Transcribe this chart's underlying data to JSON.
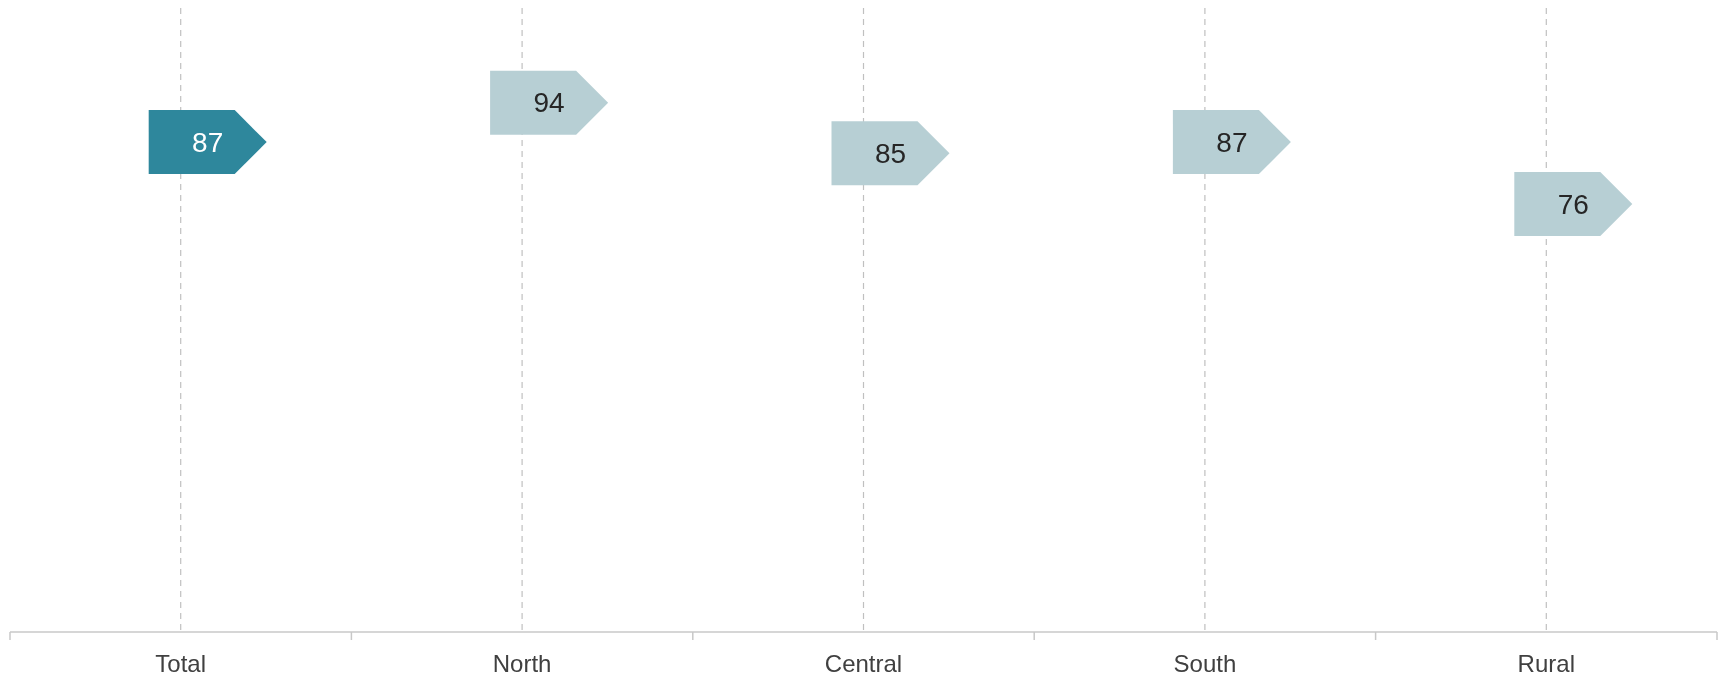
{
  "chart_data": {
    "type": "other",
    "categories": [
      "Total",
      "North",
      "Central",
      "South",
      "Rural"
    ],
    "values": [
      87,
      94,
      85,
      87,
      76
    ],
    "colors": [
      "#2e879c",
      "#b7cfd4",
      "#b7cfd4",
      "#b7cfd4",
      "#b7cfd4"
    ],
    "data_labels": true
  }
}
